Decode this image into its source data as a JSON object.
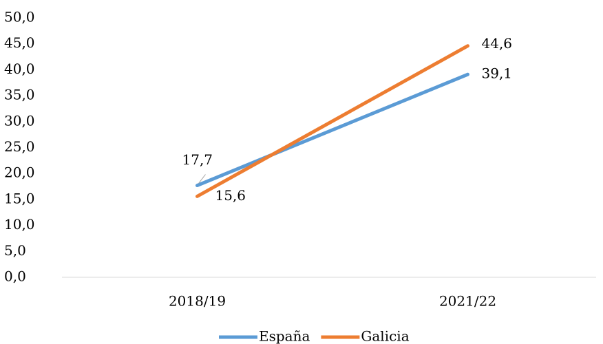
{
  "chart_data": {
    "type": "line",
    "categories": [
      "2018/19",
      "2021/22"
    ],
    "series": [
      {
        "name": "España",
        "color": "#5b9bd5",
        "values": [
          17.7,
          39.1
        ],
        "value_labels": [
          "17,7",
          "39,1"
        ]
      },
      {
        "name": "Galicia",
        "color": "#ed7d31",
        "values": [
          15.6,
          44.6
        ],
        "value_labels": [
          "15,6",
          "44,6"
        ]
      }
    ],
    "ylim": [
      0,
      50
    ],
    "yticks": [
      {
        "value": 0,
        "label": "0,0"
      },
      {
        "value": 5,
        "label": "5,0"
      },
      {
        "value": 10,
        "label": "10,0"
      },
      {
        "value": 15,
        "label": "15,0"
      },
      {
        "value": 20,
        "label": "20,0"
      },
      {
        "value": 25,
        "label": "25,0"
      },
      {
        "value": 30,
        "label": "30,0"
      },
      {
        "value": 35,
        "label": "35,0"
      },
      {
        "value": 40,
        "label": "40,0"
      },
      {
        "value": 45,
        "label": "45,0"
      },
      {
        "value": 50,
        "label": "50,0"
      }
    ],
    "grid": false,
    "legend": "bottom"
  }
}
